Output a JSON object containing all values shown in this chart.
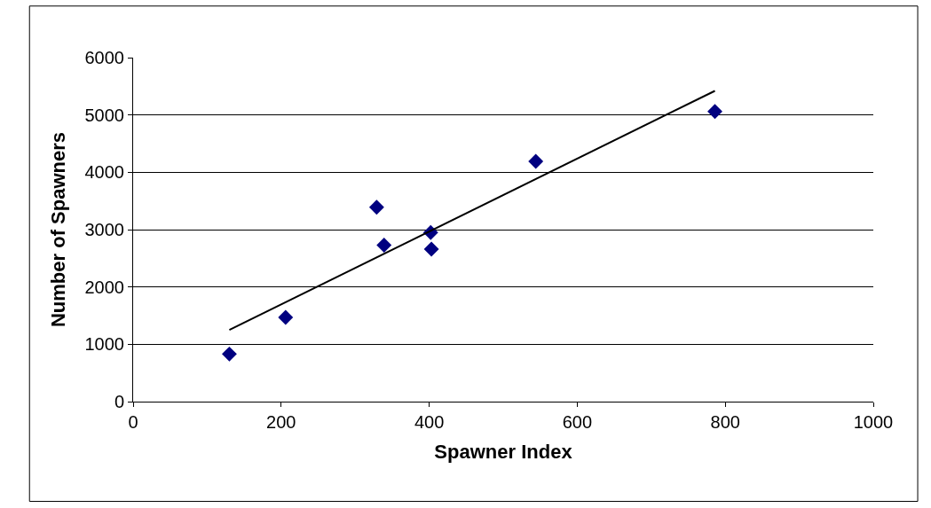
{
  "chart_data": {
    "type": "scatter",
    "xlabel": "Spawner Index",
    "ylabel": "Number of Spawners",
    "xlim": [
      0,
      1000
    ],
    "xticks": [
      0,
      200,
      400,
      600,
      800,
      1000
    ],
    "ylim": [
      0,
      6000
    ],
    "yticks": [
      0,
      1000,
      2000,
      3000,
      4000,
      5000,
      6000
    ],
    "grid": "y",
    "marker": "diamond",
    "series": [
      {
        "color": "#000080",
        "x": [
          130,
          206,
          329,
          339,
          402,
          403,
          544,
          786
        ],
        "values": [
          830,
          1470,
          3390,
          2730,
          2950,
          2660,
          4190,
          5060
        ]
      },
      {
        "type": "line",
        "marker": "none",
        "color": "#000000",
        "x": [
          130,
          786
        ],
        "values": [
          1250,
          5420
        ]
      }
    ]
  }
}
